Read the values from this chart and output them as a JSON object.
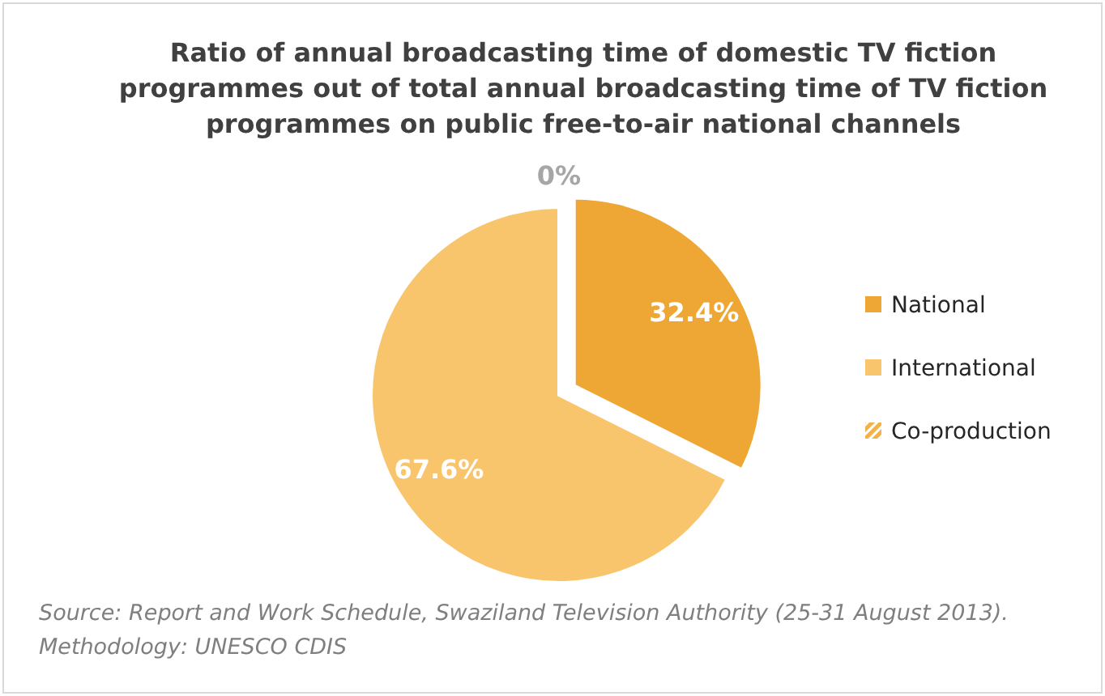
{
  "chart_data": {
    "type": "pie",
    "title": "Ratio of annual broadcasting time of domestic TV fiction programmes out of total annual broadcasting time of TV fiction programmes on public free-to-air national channels",
    "categories": [
      "National",
      "International",
      "Co-production"
    ],
    "values": [
      32.4,
      67.6,
      0
    ],
    "colors": [
      "#eea735",
      "#f8c56c",
      "#f2b24a"
    ],
    "value_labels": [
      "32.4%",
      "67.6%",
      "0%"
    ],
    "legend": "right",
    "annotations": [
      "Source: Report and Work Schedule, Swaziland Television Authority (25-31 August 2013).",
      "Methodology: UNESCO CDIS"
    ]
  }
}
